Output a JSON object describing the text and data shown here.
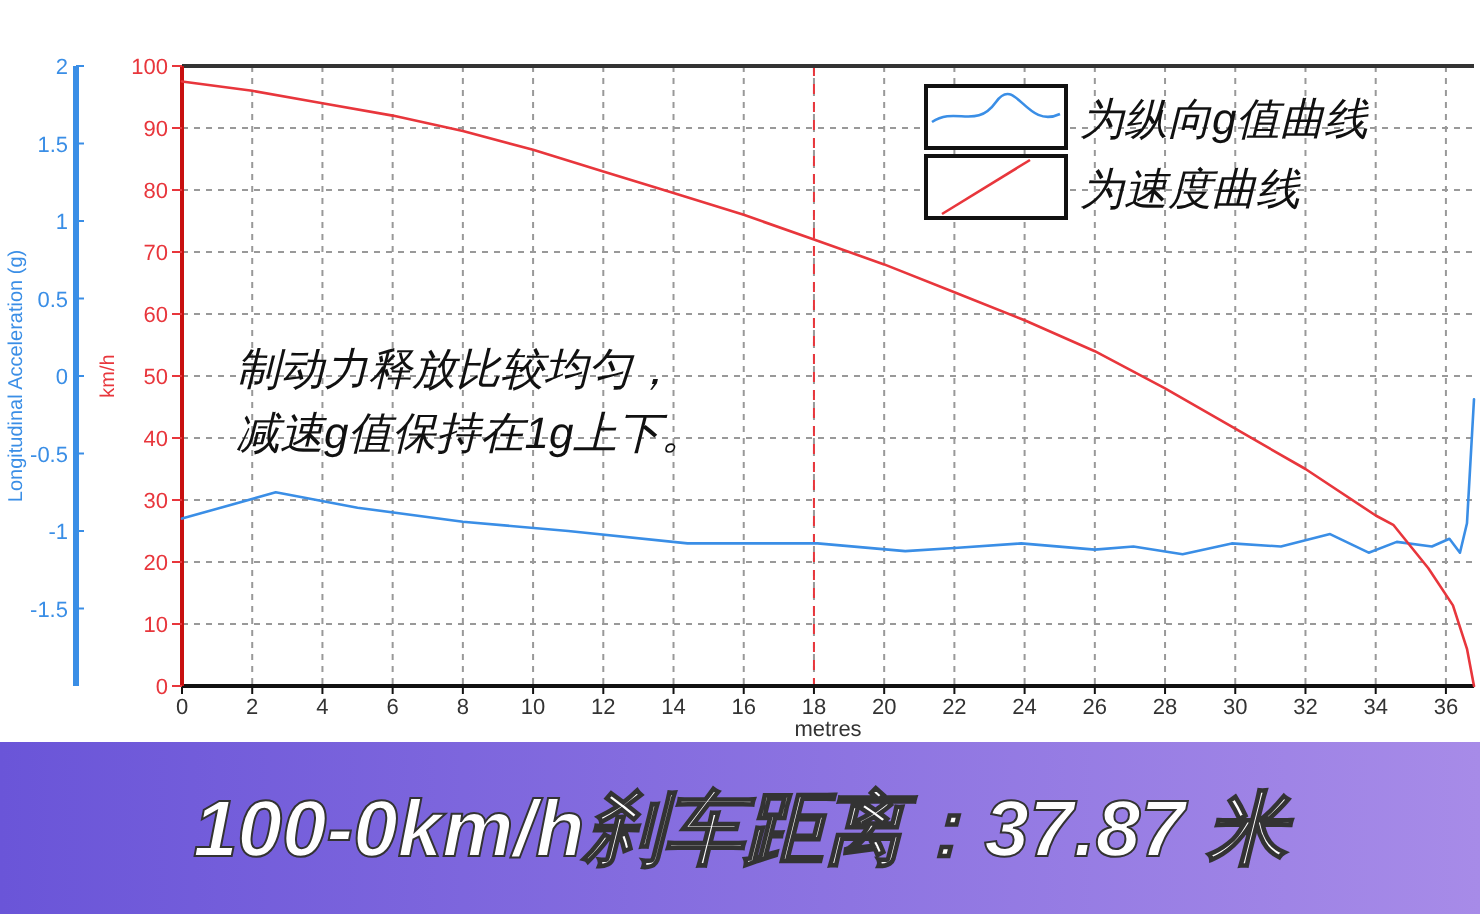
{
  "chart_data": {
    "type": "line",
    "xlabel": "metres",
    "ylabel": "km/h",
    "y2label": "Longitudinal Acceleration (g)",
    "xlim": [
      0,
      36.8
    ],
    "xticks": [
      0,
      2,
      4,
      6,
      8,
      10,
      12,
      14,
      16,
      18,
      20,
      22,
      24,
      26,
      28,
      30,
      32,
      34,
      36
    ],
    "ylim": [
      0,
      100
    ],
    "yticks": [
      0,
      10,
      20,
      30,
      40,
      50,
      60,
      70,
      80,
      90,
      100
    ],
    "y2lim": [
      -2,
      2
    ],
    "y2ticks": [
      -1.5,
      -1,
      -0.5,
      0,
      0.5,
      1,
      1.5,
      2
    ],
    "grid": true,
    "legend": "top right",
    "marker": "none",
    "series": [
      {
        "name": "为纵向g值曲线",
        "color": "#3a8ee6",
        "axis": "y2",
        "x": [
          0,
          2.67,
          5,
          8,
          11,
          14.4,
          18.1,
          20.6,
          22,
          23.9,
          26,
          27.1,
          28.5,
          29.9,
          31.3,
          32.7,
          33.8,
          34.6,
          35.6,
          36.1,
          36.4,
          36.6,
          36.8
        ],
        "values": [
          -0.92,
          -0.75,
          -0.85,
          -0.94,
          -1.0,
          -1.08,
          -1.08,
          -1.13,
          -1.11,
          -1.08,
          -1.12,
          -1.1,
          -1.15,
          -1.08,
          -1.1,
          -1.02,
          -1.14,
          -1.07,
          -1.1,
          -1.05,
          -1.14,
          -0.95,
          -0.15
        ]
      },
      {
        "name": "为速度曲线",
        "color": "#e8363c",
        "x": [
          0,
          2,
          4,
          6,
          8,
          10,
          12,
          14,
          16,
          18,
          20,
          22,
          24,
          26,
          28,
          30,
          32,
          34,
          34.5,
          35.5,
          36.2,
          36.6,
          36.8
        ],
        "values": [
          97.5,
          96,
          94,
          92,
          89.5,
          86.5,
          83,
          79.5,
          76,
          72,
          68,
          63.5,
          59,
          54,
          48,
          41.5,
          35,
          27.5,
          26,
          19,
          13,
          6,
          0
        ]
      }
    ],
    "ref_lines": [
      {
        "axis": "x",
        "value": 18,
        "color": "#e8363c",
        "line_style": "dashed"
      }
    ],
    "annotations": [
      "制动力释放比较均匀，",
      "减速g值保持在1g上下。",
      "100-0km/h刹车距离：37.87 米"
    ]
  }
}
